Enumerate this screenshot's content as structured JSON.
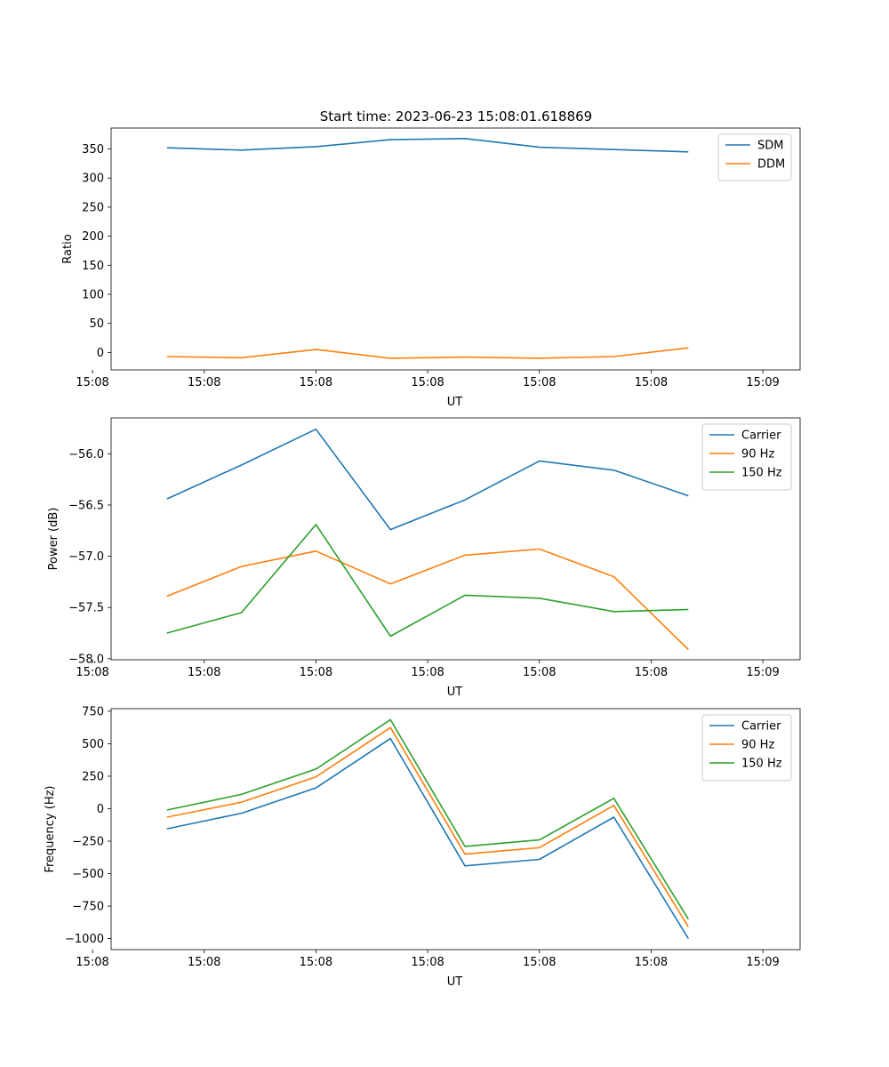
{
  "figure": {
    "title": "Start time: 2023-06-23 15:08:01.618869"
  },
  "chart_data": [
    {
      "type": "line",
      "xlabel": "UT",
      "ylabel": "Ratio",
      "x": [
        1,
        2,
        3,
        4,
        5,
        6,
        7,
        8
      ],
      "xlim": [
        0.25,
        9.5
      ],
      "x_ticks": [
        0,
        1.5,
        3,
        4.5,
        6,
        7.5,
        9
      ],
      "x_tick_labels": [
        "15:08",
        "15:08",
        "15:08",
        "15:08",
        "15:08",
        "15:08",
        "15:09"
      ],
      "ylim": [
        -30,
        386
      ],
      "y_ticks": [
        0,
        50,
        100,
        150,
        200,
        250,
        300,
        350
      ],
      "y_tick_labels": [
        "0",
        "50",
        "100",
        "150",
        "200",
        "250",
        "300",
        "350"
      ],
      "legend_position": "top-right",
      "series": [
        {
          "name": "SDM",
          "color": "#1f77b4",
          "values": [
            352,
            348,
            354,
            366,
            368,
            353,
            349,
            345
          ]
        },
        {
          "name": "DDM",
          "color": "#ff7f0e",
          "values": [
            -7,
            -9,
            5,
            -10,
            -8,
            -10,
            -7,
            8
          ]
        }
      ]
    },
    {
      "type": "line",
      "xlabel": "UT",
      "ylabel": "Power (dB)",
      "x": [
        1,
        2,
        3,
        4,
        5,
        6,
        7,
        8
      ],
      "xlim": [
        0.25,
        9.5
      ],
      "x_ticks": [
        0,
        1.5,
        3,
        4.5,
        6,
        7.5,
        9
      ],
      "x_tick_labels": [
        "15:08",
        "15:08",
        "15:08",
        "15:08",
        "15:08",
        "15:08",
        "15:09"
      ],
      "ylim": [
        -58.01,
        -55.65
      ],
      "y_ticks": [
        -58.0,
        -57.5,
        -57.0,
        -56.5,
        -56.0
      ],
      "y_tick_labels": [
        "−58.0",
        "−57.5",
        "−57.0",
        "−56.5",
        "−56.0"
      ],
      "legend_position": "top-right",
      "series": [
        {
          "name": "Carrier",
          "color": "#1f77b4",
          "values": [
            -56.44,
            -56.11,
            -55.76,
            -56.74,
            -56.45,
            -56.07,
            -56.16,
            -56.41
          ]
        },
        {
          "name": "90 Hz",
          "color": "#ff7f0e",
          "values": [
            -57.39,
            -57.1,
            -56.95,
            -57.27,
            -56.99,
            -56.93,
            -57.2,
            -57.91
          ]
        },
        {
          "name": "150 Hz",
          "color": "#2ca02c",
          "values": [
            -57.75,
            -57.55,
            -56.69,
            -57.78,
            -57.38,
            -57.41,
            -57.54,
            -57.52
          ]
        }
      ]
    },
    {
      "type": "line",
      "xlabel": "UT",
      "ylabel": "Frequency (Hz)",
      "x": [
        1,
        2,
        3,
        4,
        5,
        6,
        7,
        8
      ],
      "xlim": [
        0.25,
        9.5
      ],
      "x_ticks": [
        0,
        1.5,
        3,
        4.5,
        6,
        7.5,
        9
      ],
      "x_tick_labels": [
        "15:08",
        "15:08",
        "15:08",
        "15:08",
        "15:08",
        "15:08",
        "15:09"
      ],
      "ylim": [
        -1085,
        770
      ],
      "y_ticks": [
        -1000,
        -750,
        -500,
        -250,
        0,
        250,
        500,
        750
      ],
      "y_tick_labels": [
        "−1000",
        "−750",
        "−500",
        "−250",
        "0",
        "250",
        "500",
        "750"
      ],
      "legend_position": "top-right",
      "series": [
        {
          "name": "Carrier",
          "color": "#1f77b4",
          "values": [
            -155,
            -35,
            160,
            540,
            -440,
            -390,
            -65,
            -1000
          ]
        },
        {
          "name": "90 Hz",
          "color": "#ff7f0e",
          "values": [
            -65,
            50,
            245,
            625,
            -350,
            -300,
            25,
            -910
          ]
        },
        {
          "name": "150 Hz",
          "color": "#2ca02c",
          "values": [
            -10,
            110,
            305,
            685,
            -290,
            -240,
            80,
            -850
          ]
        }
      ]
    }
  ]
}
